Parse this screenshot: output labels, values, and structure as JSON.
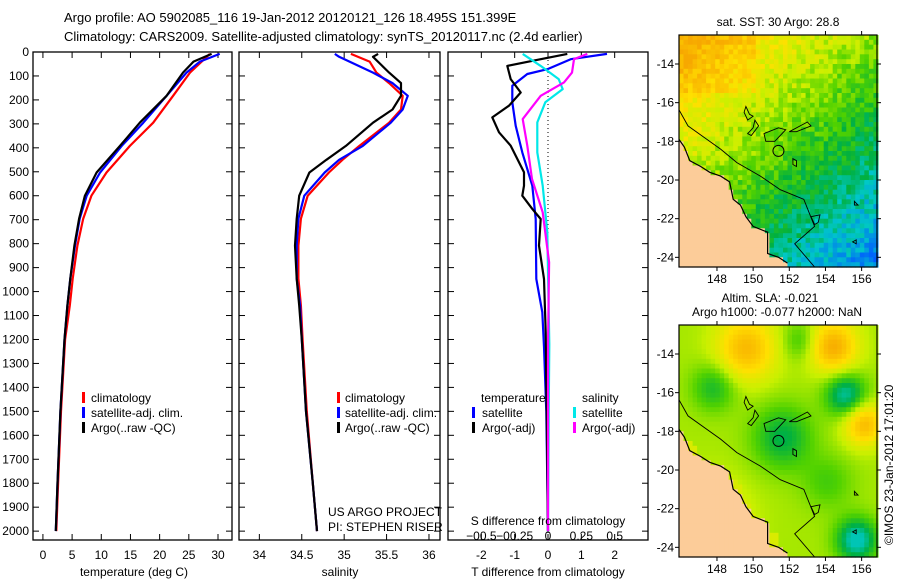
{
  "header": {
    "line1": "Argo profile: AO 5902085_116 19-Jan-2012 20120121_126 18.495S 151.399E",
    "line2": "Climatology: CARS2009. Satellite-adjusted climatology: synTS_20120117.nc (2.4d earlier)"
  },
  "credit": "©IMOS 23-Jan-2012 17:01:20",
  "project": {
    "line1": "US ARGO PROJECT",
    "line2": "PI: STEPHEN RISER"
  },
  "colors": {
    "climatology": "#ff0000",
    "satellite": "#0000ff",
    "argo": "#000000",
    "s_satellite": "#00e8e8",
    "s_argo": "#ff00ff",
    "land": "#fccc99"
  },
  "chart_data": [
    {
      "type": "line",
      "id": "temperature",
      "xlabel": "temperature (deg C)",
      "ylabel": "",
      "xlim": [
        -1.7,
        32.4
      ],
      "ylim": [
        0,
        2037
      ],
      "y_reversed": true,
      "xticks": [
        0,
        5,
        10,
        15,
        20,
        25,
        30
      ],
      "yticks": [
        0,
        100,
        200,
        300,
        400,
        500,
        600,
        700,
        800,
        900,
        1000,
        1100,
        1200,
        1300,
        1400,
        1500,
        1600,
        1700,
        1800,
        1900,
        2000
      ],
      "legend": [
        "climatology",
        "satellite-adj. clim.",
        "Argo(..raw -QC)"
      ],
      "series": [
        {
          "name": "climatology",
          "color": "#ff0000",
          "depth": [
            8,
            86,
            183,
            295,
            392,
            503,
            600,
            696,
            808,
            946,
            1058,
            1200,
            1500,
            1800,
            2000
          ],
          "values": [
            28.6,
            25.2,
            22.3,
            18.9,
            14.9,
            10.9,
            8.3,
            6.9,
            5.9,
            5.1,
            4.6,
            3.8,
            3.1,
            2.6,
            2.3
          ]
        },
        {
          "name": "satellite-adj. clim.",
          "color": "#0000ff",
          "depth": [
            8,
            40,
            86,
            183,
            295,
            392,
            503,
            600,
            696,
            808,
            946,
            1058,
            1200,
            1500,
            1800,
            2000
          ],
          "values": [
            30.3,
            26.9,
            24.6,
            21.2,
            17.2,
            13.5,
            9.8,
            7.5,
            6.3,
            5.5,
            4.7,
            4.2,
            3.7,
            3.0,
            2.5,
            2.2
          ]
        },
        {
          "name": "Argo(..raw -QC)",
          "color": "#000000",
          "depth": [
            8,
            40,
            86,
            183,
            295,
            392,
            503,
            600,
            696,
            808,
            946,
            1058,
            1200,
            1500,
            1800,
            2000
          ],
          "values": [
            28.9,
            25.8,
            24.0,
            21.2,
            16.6,
            13.2,
            9.2,
            7.2,
            6.2,
            5.4,
            4.7,
            4.2,
            3.7,
            3.0,
            2.5,
            2.2
          ]
        }
      ]
    },
    {
      "type": "line",
      "id": "salinity",
      "xlabel": "salinity",
      "xlim": [
        33.76,
        36.13
      ],
      "ylim": [
        0,
        2037
      ],
      "y_reversed": true,
      "xticks": [
        34,
        34.5,
        35,
        35.5,
        36
      ],
      "legend": [
        "climatology",
        "satellite-adj. clim.",
        "Argo(..raw -QC)"
      ],
      "series": [
        {
          "name": "climatology",
          "color": "#ff0000",
          "depth": [
            8,
            40,
            86,
            130,
            183,
            240,
            295,
            392,
            450,
            503,
            600,
            696,
            808,
            946,
            1058,
            1200,
            1500,
            1800,
            2000
          ],
          "values": [
            35.08,
            35.3,
            35.38,
            35.53,
            35.69,
            35.67,
            35.53,
            35.18,
            34.98,
            34.82,
            34.57,
            34.49,
            34.46,
            34.46,
            34.49,
            34.51,
            34.56,
            34.63,
            34.68
          ]
        },
        {
          "name": "satellite-adj. clim.",
          "color": "#0000ff",
          "depth": [
            8,
            20,
            86,
            130,
            183,
            240,
            295,
            392,
            450,
            503,
            600,
            696,
            808,
            946,
            1058,
            1200,
            1500,
            1800,
            2000
          ],
          "values": [
            34.89,
            34.94,
            35.34,
            35.57,
            35.75,
            35.69,
            35.55,
            35.22,
            34.94,
            34.77,
            34.53,
            34.46,
            34.44,
            34.44,
            34.48,
            34.5,
            34.55,
            34.63,
            34.68
          ]
        },
        {
          "name": "Argo(..raw -QC)",
          "color": "#000000",
          "depth": [
            8,
            20,
            86,
            130,
            183,
            240,
            295,
            392,
            450,
            503,
            600,
            696,
            808,
            946,
            1058,
            1200,
            1500,
            1800,
            2000
          ],
          "values": [
            35.4,
            35.34,
            35.53,
            35.67,
            35.67,
            35.57,
            35.34,
            35.02,
            34.79,
            34.59,
            34.47,
            34.44,
            34.42,
            34.44,
            34.47,
            34.5,
            34.55,
            34.63,
            34.68
          ]
        }
      ]
    },
    {
      "type": "line",
      "id": "difference",
      "xlabel": "T difference from climatology",
      "x2label": "S difference from climatology",
      "xlim": [
        -3,
        3
      ],
      "x2lim": [
        -0.75,
        0.75
      ],
      "ylim": [
        0,
        2037
      ],
      "y_reversed": true,
      "xticks": [
        -2,
        -1,
        0,
        1,
        2
      ],
      "x2ticks": [
        -0.5,
        -0.25,
        0,
        0.25,
        0.5
      ],
      "legend_headers": [
        "temperature",
        "salinity"
      ],
      "legend": [
        "satellite",
        "Argo(-adj)",
        "satellite",
        "Argo(-adj)"
      ],
      "series": [
        {
          "name": "T satellite",
          "axis": "T",
          "color": "#0000ff",
          "depth": [
            8,
            30,
            72,
            92,
            141,
            210,
            308,
            419,
            558,
            697,
            947,
            1086,
            1230,
            1500,
            2000
          ],
          "values": [
            1.77,
            0.68,
            -0.02,
            -0.62,
            -1.07,
            -1.07,
            -0.97,
            -0.77,
            -0.47,
            -0.37,
            -0.35,
            -0.17,
            -0.12,
            -0.05,
            0.0
          ]
        },
        {
          "name": "T Argo(-adj)",
          "axis": "T",
          "color": "#000000",
          "depth": [
            8,
            30,
            58,
            113,
            169,
            224,
            273,
            335,
            391,
            502,
            558,
            600,
            655,
            697,
            808,
            947,
            1169,
            1500,
            2000
          ],
          "values": [
            0.58,
            -0.22,
            -1.22,
            -1.12,
            -0.82,
            -1.17,
            -1.67,
            -1.47,
            -1.12,
            -0.72,
            -0.72,
            -0.77,
            -0.47,
            -0.22,
            -0.27,
            -0.12,
            -0.07,
            -0.04,
            0.0
          ]
        },
        {
          "name": "S satellite",
          "axis": "S",
          "color": "#00e8e8",
          "depth": [
            8,
            58,
            113,
            155,
            210,
            294,
            419,
            558,
            752,
            1220,
            1500,
            2000
          ],
          "values": [
            -0.19,
            -0.055,
            0.08,
            0.11,
            -0.02,
            -0.08,
            -0.08,
            -0.04,
            -0.005,
            0.01,
            0.005,
            0.0
          ]
        },
        {
          "name": "S Argo(-adj)",
          "axis": "S",
          "color": "#ff00ff",
          "depth": [
            8,
            30,
            86,
            127,
            183,
            280,
            391,
            530,
            669,
            878,
            1220,
            1500,
            2000
          ],
          "values": [
            0.295,
            0.195,
            0.18,
            0.12,
            -0.055,
            -0.19,
            -0.155,
            -0.12,
            -0.04,
            0.008,
            0.0,
            0.0,
            0.0
          ]
        }
      ]
    },
    {
      "type": "heatmap",
      "id": "sst_map",
      "title": "sat. SST: 30 Argo: 28.8",
      "xlim": [
        145.9,
        156.85
      ],
      "ylim": [
        -24.5,
        -12.5
      ],
      "xticks": [
        148,
        150,
        152,
        154,
        156
      ],
      "yticks": [
        -14,
        -16,
        -18,
        -20,
        -22,
        -24
      ],
      "argo_position": [
        151.399,
        -18.495
      ]
    },
    {
      "type": "heatmap",
      "id": "sla_map",
      "title": "Altim. SLA: -0.021",
      "subtitle": "Argo h1000: -0.077 h2000: NaN",
      "xlim": [
        145.9,
        156.85
      ],
      "ylim": [
        -24.5,
        -12.5
      ],
      "xticks": [
        148,
        150,
        152,
        154,
        156
      ],
      "yticks": [
        -14,
        -16,
        -18,
        -20,
        -22,
        -24
      ],
      "argo_position": [
        151.399,
        -18.495
      ]
    }
  ],
  "geo": {
    "land": [
      [
        145.9,
        -17.9
      ],
      [
        146.2,
        -18.3
      ],
      [
        146.5,
        -19.0
      ],
      [
        147.1,
        -19.3
      ],
      [
        147.6,
        -19.6
      ],
      [
        148.2,
        -19.8
      ],
      [
        148.7,
        -20.1
      ],
      [
        148.9,
        -21.0
      ],
      [
        149.3,
        -21.3
      ],
      [
        149.6,
        -21.9
      ],
      [
        150.0,
        -22.4
      ],
      [
        150.8,
        -22.7
      ],
      [
        150.8,
        -23.8
      ],
      [
        151.4,
        -24.0
      ],
      [
        151.9,
        -24.3
      ],
      [
        152.0,
        -24.6
      ],
      [
        145.9,
        -24.6
      ]
    ],
    "shelf": [
      [
        145.9,
        -16.37
      ],
      [
        146.4,
        -17.2
      ],
      [
        148.2,
        -18.4
      ],
      [
        149.1,
        -19.1
      ],
      [
        150.4,
        -19.8
      ],
      [
        151.5,
        -20.5
      ],
      [
        152.8,
        -21.0
      ],
      [
        153.4,
        -22.4
      ],
      [
        152.3,
        -23.3
      ],
      [
        153.4,
        -24.5
      ]
    ],
    "reefs": [
      [
        [
          149.6,
          -16.2
        ],
        [
          149.8,
          -16.6
        ],
        [
          150.0,
          -16.7
        ],
        [
          149.7,
          -16.9
        ],
        [
          149.5,
          -16.5
        ]
      ],
      [
        [
          150.1,
          -16.9
        ],
        [
          150.3,
          -17.2
        ],
        [
          149.9,
          -17.7
        ],
        [
          149.7,
          -17.6
        ],
        [
          150.0,
          -17.3
        ]
      ],
      [
        [
          150.6,
          -17.6
        ],
        [
          151.4,
          -17.3
        ],
        [
          151.8,
          -17.4
        ],
        [
          151.2,
          -18.0
        ],
        [
          150.7,
          -18.0
        ]
      ],
      [
        [
          152.0,
          -17.5
        ],
        [
          153.0,
          -17.0
        ],
        [
          153.2,
          -17.2
        ],
        [
          152.4,
          -17.5
        ]
      ],
      [
        [
          152.2,
          -18.9
        ],
        [
          152.4,
          -19.0
        ],
        [
          152.4,
          -19.3
        ],
        [
          152.2,
          -19.2
        ]
      ],
      [
        [
          153.2,
          -21.9
        ],
        [
          153.7,
          -21.8
        ],
        [
          153.6,
          -22.2
        ],
        [
          153.4,
          -22.3
        ]
      ],
      [
        [
          155.6,
          -21.1
        ],
        [
          155.8,
          -21.3
        ],
        [
          155.6,
          -21.3
        ]
      ],
      [
        [
          155.5,
          -23.2
        ],
        [
          155.7,
          -23.1
        ],
        [
          155.7,
          -23.3
        ]
      ]
    ]
  }
}
